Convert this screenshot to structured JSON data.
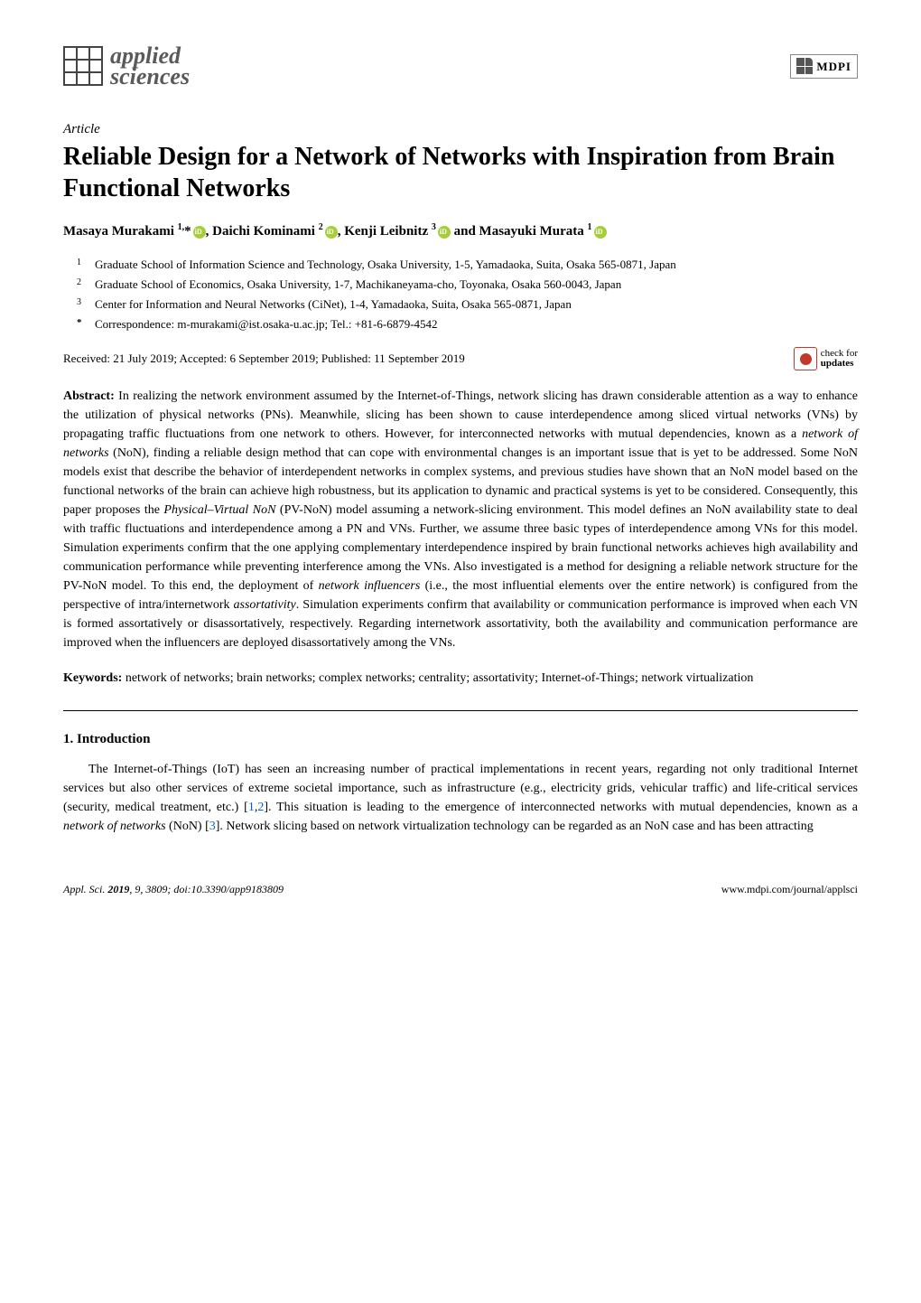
{
  "journal": {
    "logo_line1": "applied",
    "logo_line2": "sciences",
    "publisher": "MDPI"
  },
  "article": {
    "type_label": "Article",
    "title": "Reliable Design for a Network of Networks with Inspiration from Brain Functional Networks",
    "authors_html": "Masaya Murakami <sup>1,</sup>*, Daichi Kominami <sup>2</sup>, Kenji Leibnitz <sup>3</sup> and Masayuki Murata <sup>1</sup>",
    "affiliations": [
      {
        "n": "1",
        "text": "Graduate School of Information Science and Technology, Osaka University, 1-5, Yamadaoka, Suita, Osaka 565-0871, Japan"
      },
      {
        "n": "2",
        "text": "Graduate School of Economics, Osaka University, 1-7, Machikaneyama-cho, Toyonaka, Osaka 560-0043, Japan"
      },
      {
        "n": "3",
        "text": "Center for Information and Neural Networks (CiNet), 1-4, Yamadaoka, Suita, Osaka 565-0871, Japan"
      },
      {
        "n": "*",
        "text": "Correspondence: m-murakami@ist.osaka-u.ac.jp; Tel.: +81-6-6879-4542"
      }
    ],
    "dates": "Received: 21 July 2019; Accepted: 6 September 2019; Published: 11 September 2019",
    "check_updates_line1": "check for",
    "check_updates_line2": "updates",
    "abstract_label": "Abstract:",
    "abstract_text": "In realizing the network environment assumed by the Internet-of-Things, network slicing has drawn considerable attention as a way to enhance the utilization of physical networks (PNs). Meanwhile, slicing has been shown to cause interdependence among sliced virtual networks (VNs) by propagating traffic fluctuations from one network to others. However, for interconnected networks with mutual dependencies, known as a network of networks (NoN), finding a reliable design method that can cope with environmental changes is an important issue that is yet to be addressed. Some NoN models exist that describe the behavior of interdependent networks in complex systems, and previous studies have shown that an NoN model based on the functional networks of the brain can achieve high robustness, but its application to dynamic and practical systems is yet to be considered. Consequently, this paper proposes the Physical–Virtual NoN (PV-NoN) model assuming a network-slicing environment. This model defines an NoN availability state to deal with traffic fluctuations and interdependence among a PN and VNs. Further, we assume three basic types of interdependence among VNs for this model. Simulation experiments confirm that the one applying complementary interdependence inspired by brain functional networks achieves high availability and communication performance while preventing interference among the VNs. Also investigated is a method for designing a reliable network structure for the PV-NoN model. To this end, the deployment of network influencers (i.e., the most influential elements over the entire network) is configured from the perspective of intra/internetwork assortativity. Simulation experiments confirm that availability or communication performance is improved when each VN is formed assortatively or disassortatively, respectively. Regarding internetwork assortativity, both the availability and communication performance are improved when the influencers are deployed disassortatively among the VNs.",
    "keywords_label": "Keywords:",
    "keywords_text": "network of networks; brain networks; complex networks; centrality; assortativity; Internet-of-Things; network virtualization"
  },
  "sections": {
    "intro_title": "1. Introduction",
    "intro_body": "The Internet-of-Things (IoT) has seen an increasing number of practical implementations in recent years, regarding not only traditional Internet services but also other services of extreme societal importance, such as infrastructure (e.g., electricity grids, vehicular traffic) and life-critical services (security, medical treatment, etc.) [1,2]. This situation is leading to the emergence of interconnected networks with mutual dependencies, known as a network of networks (NoN) [3]. Network slicing based on network virtualization technology can be regarded as an NoN case and has been attracting"
  },
  "footer": {
    "left": "Appl. Sci. 2019, 9, 3809; doi:10.3390/app9183809",
    "right": "www.mdpi.com/journal/applsci"
  },
  "colors": {
    "link_color": "#0066cc",
    "orcid_color": "#A6CE39",
    "check_red": "#c0392b",
    "text_color": "#000000",
    "bg_color": "#ffffff"
  }
}
